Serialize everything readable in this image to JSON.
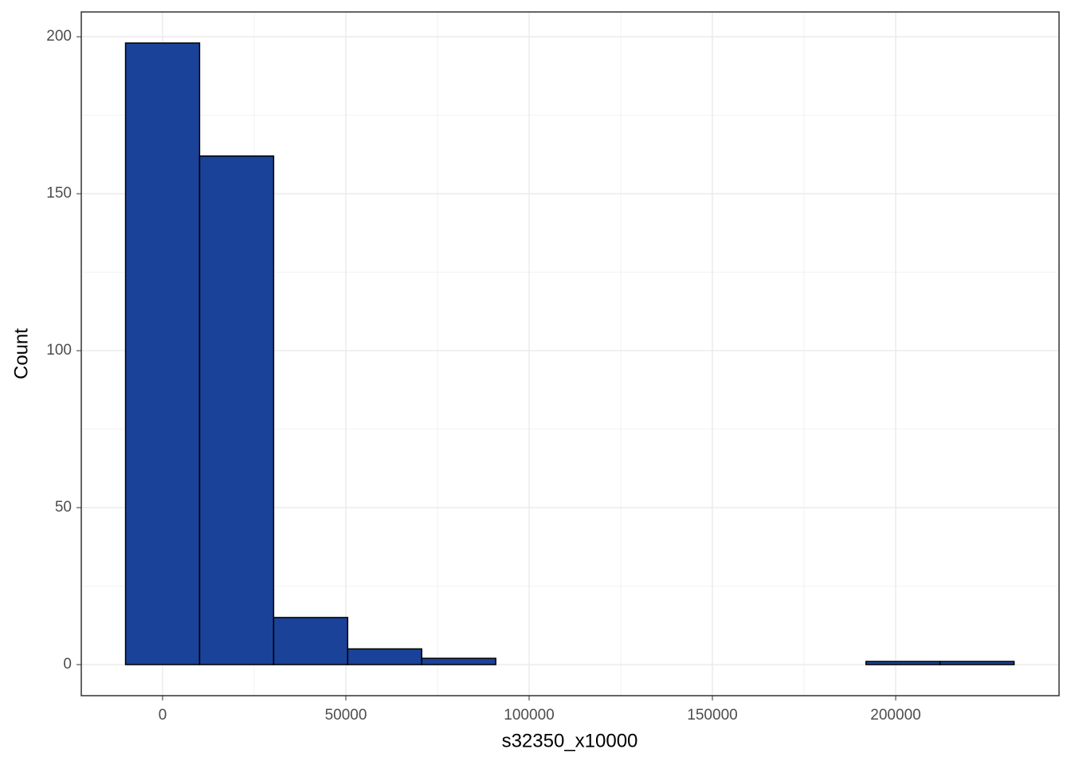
{
  "chart_data": {
    "type": "histogram",
    "x_label": "s32350_x10000",
    "y_label": "Count",
    "bins": [
      -10100,
      10100,
      30300,
      50500,
      70700,
      90900,
      111100,
      131300,
      151500,
      171700,
      191900,
      212100,
      232300
    ],
    "values": [
      198,
      162,
      15,
      5,
      2,
      0,
      0,
      0,
      0,
      0,
      1,
      1
    ],
    "color": "#1a4299",
    "edgecolor": "#000000",
    "xlim": [
      -22174,
      244565
    ],
    "xticks": [
      0,
      50000,
      100000,
      150000,
      200000
    ],
    "ylim": [
      -9.9,
      207.9
    ],
    "yticks": [
      0,
      50,
      100,
      150,
      200
    ],
    "grid": true
  }
}
